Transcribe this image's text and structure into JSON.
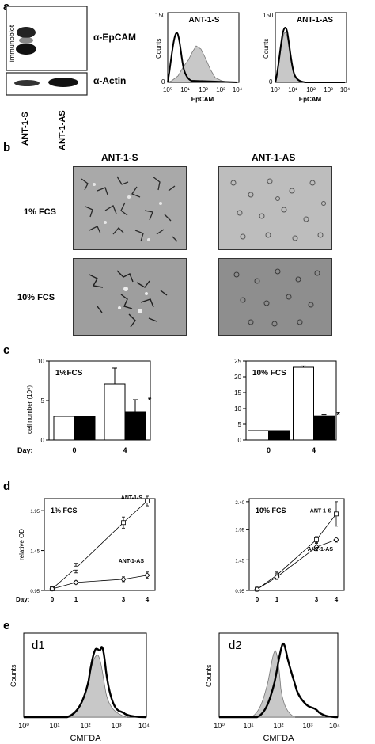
{
  "panels": {
    "a": {
      "letter": "a",
      "blot": {
        "side_label": "immunoblot",
        "band1": "α-EpCAM",
        "band2": "α-Actin",
        "lanes": [
          "ANT-1-S",
          "ANT-1-AS"
        ]
      },
      "flow": [
        {
          "title": "ANT-1-S",
          "ylabel": "Counts",
          "xlabel": "EpCAM",
          "ymax": "150",
          "ymid": "",
          "ymin": "0",
          "xticks": [
            "10⁰",
            "10¹",
            "10²",
            "10³",
            "10⁴"
          ]
        },
        {
          "title": "ANT-1-AS",
          "ylabel": "Counts",
          "xlabel": "EpCAM",
          "ymax": "150",
          "ymin": "0",
          "xticks": [
            "10⁰",
            "10¹",
            "10²",
            "10³",
            "10⁴"
          ]
        }
      ]
    },
    "b": {
      "letter": "b",
      "cols": [
        "ANT-1-S",
        "ANT-1-AS"
      ],
      "rows": [
        "1% FCS",
        "10% FCS"
      ]
    },
    "c": {
      "letter": "c",
      "ylabel": "cell number (10⁶)",
      "day_label": "Day:",
      "left": {
        "title": "1%FCS",
        "yticks": [
          "0",
          "5",
          "10"
        ],
        "days": [
          "0",
          "4"
        ],
        "star": "*"
      },
      "right": {
        "title": "10% FCS",
        "yticks": [
          "0",
          "5",
          "10",
          "15",
          "20",
          "25"
        ],
        "days": [
          "0",
          "4"
        ],
        "star": "*"
      }
    },
    "d": {
      "letter": "d",
      "ylabel": "relative OD",
      "day_label": "Day:",
      "left": {
        "title": "1% FCS",
        "yticks": [
          "0.95",
          "1.45",
          "1.95"
        ],
        "days": [
          "0",
          "1",
          "3",
          "4"
        ],
        "s_label": "ANT-1-S",
        "as_label": "ANT-1-AS"
      },
      "right": {
        "title": "10% FCS",
        "yticks": [
          "0.95",
          "1.45",
          "1.95",
          "2.40"
        ],
        "days": [
          "0",
          "1",
          "3",
          "4"
        ],
        "s_label": "ANT-1-S",
        "as_label": "ANT-1-AS"
      }
    },
    "e": {
      "letter": "e",
      "left": {
        "tag": "d1",
        "ylabel": "Counts",
        "xlabel": "CMFDA"
      },
      "right": {
        "tag": "d2",
        "ylabel": "Counts",
        "xlabel": "CMFDA"
      },
      "xticks": [
        "10⁰",
        "10¹",
        "10²",
        "10³",
        "10⁴"
      ]
    }
  },
  "chart_data": [
    {
      "type": "bar",
      "title": "1%FCS",
      "ylabel": "cell number (10⁶)",
      "categories": [
        "0",
        "4"
      ],
      "series": [
        {
          "name": "ANT-1-S",
          "values": [
            3.0,
            7.1
          ],
          "errors": [
            0,
            2.0
          ]
        },
        {
          "name": "ANT-1-AS",
          "values": [
            3.0,
            3.6
          ],
          "errors": [
            0,
            1.5
          ]
        }
      ],
      "ylim": [
        0,
        10
      ]
    },
    {
      "type": "bar",
      "title": "10% FCS",
      "ylabel": "cell number (10⁶)",
      "categories": [
        "0",
        "4"
      ],
      "series": [
        {
          "name": "ANT-1-S",
          "values": [
            3.0,
            23.0
          ],
          "errors": [
            0,
            0.4
          ]
        },
        {
          "name": "ANT-1-AS",
          "values": [
            3.0,
            7.7
          ],
          "errors": [
            0,
            0.4
          ]
        }
      ],
      "ylim": [
        0,
        25
      ]
    },
    {
      "type": "line",
      "title": "1% FCS",
      "ylabel": "relative OD",
      "x": [
        0,
        1,
        3,
        4
      ],
      "series": [
        {
          "name": "ANT-1-S",
          "values": [
            0.97,
            1.23,
            1.8,
            2.07
          ],
          "errors": [
            0,
            0.06,
            0.07,
            0.06
          ]
        },
        {
          "name": "ANT-1-AS",
          "values": [
            0.97,
            1.05,
            1.09,
            1.14
          ],
          "errors": [
            0,
            0.02,
            0.03,
            0.04
          ]
        }
      ],
      "ylim": [
        0.95,
        2.1
      ]
    },
    {
      "type": "line",
      "title": "10% FCS",
      "ylabel": "relative OD",
      "x": [
        0,
        1,
        3,
        4
      ],
      "series": [
        {
          "name": "ANT-1-S",
          "values": [
            0.97,
            1.2,
            1.78,
            2.2
          ],
          "errors": [
            0,
            0.05,
            0.05,
            0.2
          ]
        },
        {
          "name": "ANT-1-AS",
          "values": [
            0.97,
            1.17,
            1.66,
            1.78
          ],
          "errors": [
            0,
            0.04,
            0.06,
            0.04
          ]
        }
      ],
      "ylim": [
        0.95,
        2.45
      ]
    }
  ]
}
